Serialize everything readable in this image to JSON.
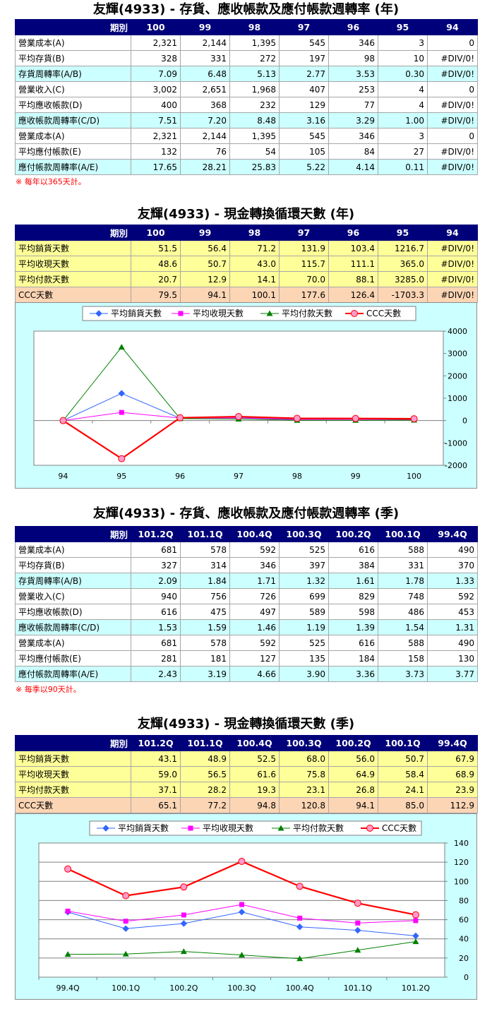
{
  "sections": {
    "annual_turnover": {
      "title": "友輝(4933) -  存貨、應收帳款及應付帳款週轉率 (年)",
      "header": [
        "期別",
        "100",
        "99",
        "98",
        "97",
        "96",
        "95",
        "94"
      ],
      "rows": [
        {
          "label": "營業成本(A)",
          "values": [
            "2,321",
            "2,144",
            "1,395",
            "545",
            "346",
            "3",
            "0"
          ],
          "style": "white"
        },
        {
          "label": "平均存貨(B)",
          "values": [
            "328",
            "331",
            "272",
            "197",
            "98",
            "10",
            "#DIV/0!"
          ],
          "style": "white"
        },
        {
          "label": "存貨周轉率(A/B)",
          "values": [
            "7.09",
            "6.48",
            "5.13",
            "2.77",
            "3.53",
            "0.30",
            "#DIV/0!"
          ],
          "style": "cyan"
        },
        {
          "label": "營業收入(C)",
          "values": [
            "3,002",
            "2,651",
            "1,968",
            "407",
            "253",
            "4",
            "0"
          ],
          "style": "white"
        },
        {
          "label": "平均應收帳款(D)",
          "values": [
            "400",
            "368",
            "232",
            "129",
            "77",
            "4",
            "#DIV/0!"
          ],
          "style": "white"
        },
        {
          "label": "應收帳款周轉率(C/D)",
          "values": [
            "7.51",
            "7.20",
            "8.48",
            "3.16",
            "3.29",
            "1.00",
            "#DIV/0!"
          ],
          "style": "cyan"
        },
        {
          "label": "營業成本(A)",
          "values": [
            "2,321",
            "2,144",
            "1,395",
            "545",
            "346",
            "3",
            "0"
          ],
          "style": "white"
        },
        {
          "label": "平均應付帳款(E)",
          "values": [
            "132",
            "76",
            "54",
            "105",
            "84",
            "27",
            "#DIV/0!"
          ],
          "style": "white"
        },
        {
          "label": "應付帳款周轉率(A/E)",
          "values": [
            "17.65",
            "28.21",
            "25.83",
            "5.22",
            "4.14",
            "0.11",
            "#DIV/0!"
          ],
          "style": "cyan"
        }
      ],
      "note": "※ 每年以365天計。"
    },
    "annual_ccc": {
      "title": "友輝(4933) -  現金轉換循環天數 (年)",
      "header": [
        "期別",
        "100",
        "99",
        "98",
        "97",
        "96",
        "95",
        "94"
      ],
      "rows": [
        {
          "label": "平均銷貨天數",
          "values": [
            "51.5",
            "56.4",
            "71.2",
            "131.9",
            "103.4",
            "1216.7",
            "#DIV/0!"
          ],
          "style": "yellow"
        },
        {
          "label": "平均收現天數",
          "values": [
            "48.6",
            "50.7",
            "43.0",
            "115.7",
            "111.1",
            "365.0",
            "#DIV/0!"
          ],
          "style": "yellow"
        },
        {
          "label": "平均付款天數",
          "values": [
            "20.7",
            "12.9",
            "14.1",
            "70.0",
            "88.1",
            "3285.0",
            "#DIV/0!"
          ],
          "style": "yellow"
        },
        {
          "label": "CCC天數",
          "values": [
            "79.5",
            "94.1",
            "100.1",
            "177.6",
            "126.4",
            "-1703.3",
            "#DIV/0!"
          ],
          "style": "orange"
        }
      ]
    },
    "quarterly_turnover": {
      "title": "友輝(4933) -  存貨、應收帳款及應付帳款週轉率 (季)",
      "header": [
        "期別",
        "101.2Q",
        "101.1Q",
        "100.4Q",
        "100.3Q",
        "100.2Q",
        "100.1Q",
        "99.4Q"
      ],
      "rows": [
        {
          "label": "營業成本(A)",
          "values": [
            "681",
            "578",
            "592",
            "525",
            "616",
            "588",
            "490"
          ],
          "style": "white"
        },
        {
          "label": "平均存貨(B)",
          "values": [
            "327",
            "314",
            "346",
            "397",
            "384",
            "331",
            "370"
          ],
          "style": "white"
        },
        {
          "label": "存貨周轉率(A/B)",
          "values": [
            "2.09",
            "1.84",
            "1.71",
            "1.32",
            "1.61",
            "1.78",
            "1.33"
          ],
          "style": "cyan"
        },
        {
          "label": "營業收入(C)",
          "values": [
            "940",
            "756",
            "726",
            "699",
            "829",
            "748",
            "592"
          ],
          "style": "white"
        },
        {
          "label": "平均應收帳款(D)",
          "values": [
            "616",
            "475",
            "497",
            "589",
            "598",
            "486",
            "453"
          ],
          "style": "white"
        },
        {
          "label": "應收帳款周轉率(C/D)",
          "values": [
            "1.53",
            "1.59",
            "1.46",
            "1.19",
            "1.39",
            "1.54",
            "1.31"
          ],
          "style": "cyan"
        },
        {
          "label": "營業成本(A)",
          "values": [
            "681",
            "578",
            "592",
            "525",
            "616",
            "588",
            "490"
          ],
          "style": "white"
        },
        {
          "label": "平均應付帳款(E)",
          "values": [
            "281",
            "181",
            "127",
            "135",
            "184",
            "158",
            "130"
          ],
          "style": "white"
        },
        {
          "label": "應付帳款周轉率(A/E)",
          "values": [
            "2.43",
            "3.19",
            "4.66",
            "3.90",
            "3.36",
            "3.73",
            "3.77"
          ],
          "style": "cyan"
        }
      ],
      "note": "※ 每季以90天計。"
    },
    "quarterly_ccc": {
      "title": "友輝(4933) -  現金轉換循環天數 (季)",
      "header": [
        "期別",
        "101.2Q",
        "101.1Q",
        "100.4Q",
        "100.3Q",
        "100.2Q",
        "100.1Q",
        "99.4Q"
      ],
      "rows": [
        {
          "label": "平均銷貨天數",
          "values": [
            "43.1",
            "48.9",
            "52.5",
            "68.0",
            "56.0",
            "50.7",
            "67.9"
          ],
          "style": "yellow"
        },
        {
          "label": "平均收現天數",
          "values": [
            "59.0",
            "56.5",
            "61.6",
            "75.8",
            "64.9",
            "58.4",
            "68.9"
          ],
          "style": "yellow"
        },
        {
          "label": "平均付款天數",
          "values": [
            "37.1",
            "28.2",
            "19.3",
            "23.1",
            "26.8",
            "24.1",
            "23.9"
          ],
          "style": "yellow"
        },
        {
          "label": "CCC天數",
          "values": [
            "65.1",
            "77.2",
            "94.8",
            "120.8",
            "94.1",
            "85.0",
            "112.9"
          ],
          "style": "orange"
        }
      ]
    }
  },
  "chart_data": [
    {
      "type": "line",
      "categories": [
        "94",
        "95",
        "96",
        "97",
        "98",
        "99",
        "100"
      ],
      "series": [
        {
          "name": "平均銷貨天數",
          "values": [
            0,
            1216.7,
            103.4,
            131.9,
            71.2,
            56.4,
            51.5
          ],
          "color": "#3366ff",
          "marker": "diamond"
        },
        {
          "name": "平均收現天數",
          "values": [
            0,
            365.0,
            111.1,
            115.7,
            43.0,
            50.7,
            48.6
          ],
          "color": "#ff00ff",
          "marker": "square"
        },
        {
          "name": "平均付款天數",
          "values": [
            0,
            3285.0,
            88.1,
            70.0,
            14.1,
            12.9,
            20.7
          ],
          "color": "#008000",
          "marker": "triangle"
        },
        {
          "name": "CCC天數",
          "values": [
            0,
            -1703.3,
            126.4,
            177.6,
            100.1,
            94.1,
            79.5
          ],
          "color": "#ff0000",
          "marker": "circle"
        }
      ],
      "ylim": [
        -2000,
        4000
      ],
      "yticks": [
        "4000",
        "3000",
        "2000",
        "1000",
        "0",
        "-1000",
        "-2000"
      ],
      "legend": "top",
      "grid": false
    },
    {
      "type": "line",
      "categories": [
        "99.4Q",
        "100.1Q",
        "100.2Q",
        "100.3Q",
        "100.4Q",
        "101.1Q",
        "101.2Q"
      ],
      "series": [
        {
          "name": "平均銷貨天數",
          "values": [
            67.9,
            50.7,
            56.0,
            68.0,
            52.5,
            48.9,
            43.1
          ],
          "color": "#3366ff",
          "marker": "diamond"
        },
        {
          "name": "平均收現天數",
          "values": [
            68.9,
            58.4,
            64.9,
            75.8,
            61.6,
            56.5,
            59.0
          ],
          "color": "#ff00ff",
          "marker": "square"
        },
        {
          "name": "平均付款天數",
          "values": [
            23.9,
            24.1,
            26.8,
            23.1,
            19.3,
            28.2,
            37.1
          ],
          "color": "#008000",
          "marker": "triangle"
        },
        {
          "name": "CCC天數",
          "values": [
            112.9,
            85.0,
            94.1,
            120.8,
            94.8,
            77.2,
            65.1
          ],
          "color": "#ff0000",
          "marker": "circle"
        }
      ],
      "ylim": [
        0,
        140
      ],
      "yticks": [
        "140",
        "120",
        "100",
        "80",
        "60",
        "40",
        "20",
        "0"
      ],
      "legend": "top",
      "grid": true
    }
  ]
}
